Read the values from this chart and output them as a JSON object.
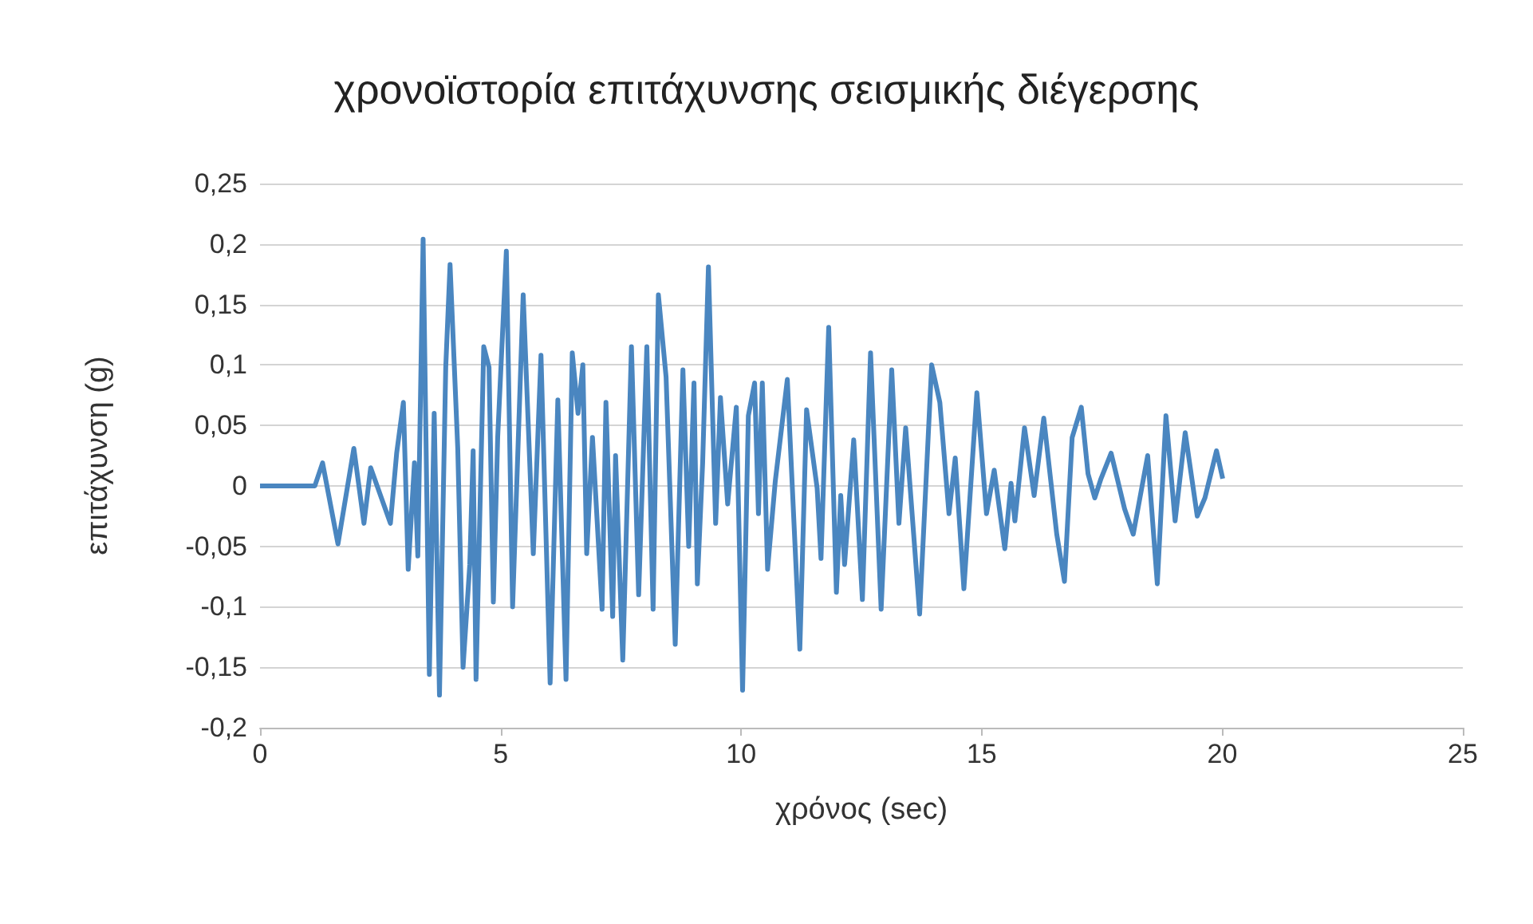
{
  "chart_data": {
    "type": "line",
    "title": "χρονοϊστορία επιτάχυνσης σεισμικής διέγερσης",
    "xlabel": "χρόνος (sec)",
    "ylabel": "επιτάχυνση (g)",
    "xlim": [
      0,
      25
    ],
    "xticks": [
      0,
      5,
      10,
      15,
      20,
      25
    ],
    "ylim": [
      -0.2,
      0.25
    ],
    "yticks": [
      {
        "value": -0.2,
        "label": "-0,2"
      },
      {
        "value": -0.15,
        "label": "-0,15"
      },
      {
        "value": -0.1,
        "label": "-0,1"
      },
      {
        "value": -0.05,
        "label": "-0,05"
      },
      {
        "value": 0,
        "label": "0"
      },
      {
        "value": 0.05,
        "label": "0,05"
      },
      {
        "value": 0.1,
        "label": "0,1"
      },
      {
        "value": 0.15,
        "label": "0,15"
      },
      {
        "value": 0.2,
        "label": "0,2"
      },
      {
        "value": 0.25,
        "label": "0,25"
      }
    ],
    "grid": "y",
    "series": [
      {
        "color": "#4a86c0",
        "x": [
          0,
          1.14,
          1.3,
          1.62,
          1.95,
          2.16,
          2.3,
          2.71,
          2.84,
          2.98,
          3.08,
          3.21,
          3.28,
          3.39,
          3.52,
          3.62,
          3.73,
          3.86,
          3.95,
          4.11,
          4.22,
          4.36,
          4.43,
          4.49,
          4.65,
          4.76,
          4.85,
          4.94,
          5.12,
          5.25,
          5.47,
          5.68,
          5.84,
          6.03,
          6.19,
          6.36,
          6.49,
          6.61,
          6.71,
          6.79,
          6.91,
          7.11,
          7.19,
          7.33,
          7.39,
          7.54,
          7.72,
          7.87,
          8.04,
          8.17,
          8.28,
          8.44,
          8.63,
          8.79,
          8.91,
          9.02,
          9.09,
          9.2,
          9.32,
          9.47,
          9.57,
          9.72,
          9.9,
          10.03,
          10.15,
          10.28,
          10.36,
          10.44,
          10.55,
          10.71,
          10.96,
          11.22,
          11.36,
          11.58,
          11.66,
          11.82,
          11.98,
          12.07,
          12.15,
          12.34,
          12.52,
          12.69,
          12.91,
          13.13,
          13.28,
          13.42,
          13.71,
          13.96,
          14.13,
          14.32,
          14.45,
          14.63,
          14.9,
          15.1,
          15.26,
          15.48,
          15.61,
          15.69,
          15.89,
          16.09,
          16.29,
          16.56,
          16.72,
          16.88,
          17.07,
          17.21,
          17.35,
          17.48,
          17.69,
          17.97,
          18.15,
          18.45,
          18.65,
          18.83,
          19.02,
          19.23,
          19.48,
          19.64,
          19.88,
          20.01
        ],
        "values": [
          0,
          0,
          0.019,
          -0.048,
          0.031,
          -0.031,
          0.015,
          -0.031,
          0.027,
          0.069,
          -0.069,
          0.019,
          -0.058,
          0.204,
          -0.156,
          0.06,
          -0.173,
          0.098,
          0.183,
          0.031,
          -0.15,
          -0.065,
          0.029,
          -0.16,
          0.115,
          0.098,
          -0.096,
          0.04,
          0.194,
          -0.1,
          0.158,
          -0.056,
          0.108,
          -0.163,
          0.071,
          -0.16,
          0.11,
          0.06,
          0.1,
          -0.056,
          0.04,
          -0.102,
          0.069,
          -0.108,
          0.025,
          -0.144,
          0.115,
          -0.09,
          0.115,
          -0.102,
          0.158,
          0.09,
          -0.131,
          0.096,
          -0.05,
          0.085,
          -0.081,
          0.019,
          0.181,
          -0.031,
          0.073,
          -0.015,
          0.065,
          -0.169,
          0.058,
          0.085,
          -0.023,
          0.085,
          -0.069,
          0.004,
          0.088,
          -0.135,
          0.063,
          -0.002,
          -0.06,
          0.131,
          -0.088,
          -0.008,
          -0.065,
          0.038,
          -0.094,
          0.11,
          -0.102,
          0.096,
          -0.031,
          0.048,
          -0.106,
          0.1,
          0.069,
          -0.023,
          0.023,
          -0.085,
          0.077,
          -0.023,
          0.013,
          -0.052,
          0.002,
          -0.029,
          0.048,
          -0.008,
          0.056,
          -0.04,
          -0.079,
          0.04,
          0.065,
          0.01,
          -0.01,
          0.006,
          0.027,
          -0.019,
          -0.04,
          0.025,
          -0.081,
          0.058,
          -0.029,
          0.044,
          -0.025,
          -0.01,
          0.029,
          0.006
        ]
      }
    ]
  }
}
